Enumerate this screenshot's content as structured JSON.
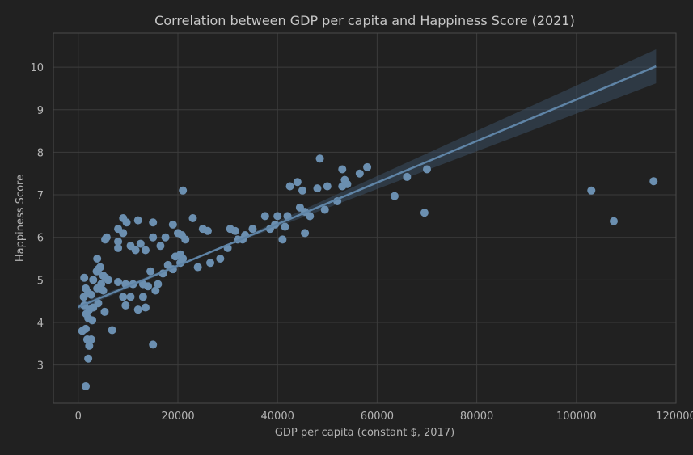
{
  "chart_data": {
    "type": "scatter",
    "title": "Correlation between GDP per capita and Happiness Score (2021)",
    "xlabel": "GDP per capita (constant $, 2017)",
    "ylabel": "Happiness Score",
    "xlim": [
      -5000,
      120000
    ],
    "ylim": [
      2.1,
      10.8
    ],
    "xticks": [
      0,
      20000,
      40000,
      60000,
      80000,
      100000,
      120000
    ],
    "yticks": [
      3,
      4,
      5,
      6,
      7,
      8,
      9,
      10
    ],
    "grid": true,
    "point_color": "#6b8fb0",
    "line_color": "#5f84a6",
    "band_color": "#3a4e62",
    "background": "#212121",
    "regression": {
      "x": [
        0,
        116000
      ],
      "y": [
        4.36,
        10.02
      ],
      "ci_lower_end": 9.62,
      "ci_upper_end": 10.42
    },
    "points": [
      [
        1500,
        2.5
      ],
      [
        2000,
        3.15
      ],
      [
        2200,
        3.45
      ],
      [
        2600,
        3.6
      ],
      [
        1800,
        3.6
      ],
      [
        800,
        3.8
      ],
      [
        1500,
        3.85
      ],
      [
        6800,
        3.82
      ],
      [
        15000,
        3.48
      ],
      [
        2000,
        4.1
      ],
      [
        2800,
        4.05
      ],
      [
        1600,
        4.2
      ],
      [
        2200,
        4.3
      ],
      [
        3000,
        4.35
      ],
      [
        1200,
        4.4
      ],
      [
        4000,
        4.45
      ],
      [
        5300,
        4.25
      ],
      [
        9500,
        4.4
      ],
      [
        12000,
        4.3
      ],
      [
        13500,
        4.35
      ],
      [
        13000,
        4.6
      ],
      [
        10500,
        4.6
      ],
      [
        9000,
        4.6
      ],
      [
        1100,
        4.6
      ],
      [
        2000,
        4.7
      ],
      [
        2600,
        4.65
      ],
      [
        3800,
        4.8
      ],
      [
        5000,
        4.75
      ],
      [
        1500,
        4.8
      ],
      [
        4600,
        4.9
      ],
      [
        8000,
        4.95
      ],
      [
        9500,
        4.9
      ],
      [
        11000,
        4.9
      ],
      [
        13000,
        4.9
      ],
      [
        14000,
        4.85
      ],
      [
        15500,
        4.75
      ],
      [
        16000,
        4.9
      ],
      [
        1200,
        5.05
      ],
      [
        3000,
        5.0
      ],
      [
        5500,
        5.05
      ],
      [
        3700,
        5.2
      ],
      [
        4000,
        5.25
      ],
      [
        4400,
        5.3
      ],
      [
        3800,
        5.5
      ],
      [
        5000,
        5.1
      ],
      [
        6000,
        5.0
      ],
      [
        14500,
        5.2
      ],
      [
        17000,
        5.15
      ],
      [
        18000,
        5.35
      ],
      [
        19000,
        5.25
      ],
      [
        20500,
        5.4
      ],
      [
        21000,
        5.5
      ],
      [
        24000,
        5.3
      ],
      [
        26500,
        5.4
      ],
      [
        28500,
        5.5
      ],
      [
        30000,
        5.75
      ],
      [
        13500,
        5.7
      ],
      [
        16500,
        5.8
      ],
      [
        19500,
        5.55
      ],
      [
        20500,
        5.6
      ],
      [
        8000,
        5.75
      ],
      [
        8000,
        5.9
      ],
      [
        10500,
        5.8
      ],
      [
        11500,
        5.7
      ],
      [
        12500,
        5.85
      ],
      [
        15000,
        6.0
      ],
      [
        17500,
        6.0
      ],
      [
        5400,
        5.95
      ],
      [
        5700,
        6.0
      ],
      [
        8000,
        6.2
      ],
      [
        9000,
        6.1
      ],
      [
        20000,
        6.1
      ],
      [
        20800,
        6.05
      ],
      [
        21500,
        5.95
      ],
      [
        25000,
        6.2
      ],
      [
        26000,
        6.15
      ],
      [
        30500,
        6.2
      ],
      [
        32000,
        5.95
      ],
      [
        31500,
        6.15
      ],
      [
        33500,
        6.05
      ],
      [
        33000,
        5.95
      ],
      [
        35000,
        6.2
      ],
      [
        12000,
        6.4
      ],
      [
        9000,
        6.45
      ],
      [
        9700,
        6.35
      ],
      [
        15000,
        6.35
      ],
      [
        19000,
        6.3
      ],
      [
        23000,
        6.45
      ],
      [
        37500,
        6.5
      ],
      [
        38500,
        6.2
      ],
      [
        39500,
        6.3
      ],
      [
        40000,
        6.5
      ],
      [
        41000,
        5.95
      ],
      [
        41500,
        6.25
      ],
      [
        42000,
        6.5
      ],
      [
        45500,
        6.1
      ],
      [
        44500,
        6.7
      ],
      [
        45500,
        6.6
      ],
      [
        46500,
        6.5
      ],
      [
        21000,
        7.1
      ],
      [
        42500,
        7.2
      ],
      [
        44000,
        7.3
      ],
      [
        45000,
        7.1
      ],
      [
        48000,
        7.15
      ],
      [
        49500,
        6.65
      ],
      [
        50000,
        7.2
      ],
      [
        52000,
        6.85
      ],
      [
        53000,
        7.2
      ],
      [
        53500,
        7.35
      ],
      [
        54000,
        7.25
      ],
      [
        53000,
        7.6
      ],
      [
        48500,
        7.85
      ],
      [
        56500,
        7.5
      ],
      [
        58000,
        7.65
      ],
      [
        63500,
        6.97
      ],
      [
        66000,
        7.42
      ],
      [
        70000,
        7.6
      ],
      [
        69500,
        6.58
      ],
      [
        103000,
        7.1
      ],
      [
        107500,
        6.38
      ],
      [
        115500,
        7.32
      ]
    ]
  }
}
